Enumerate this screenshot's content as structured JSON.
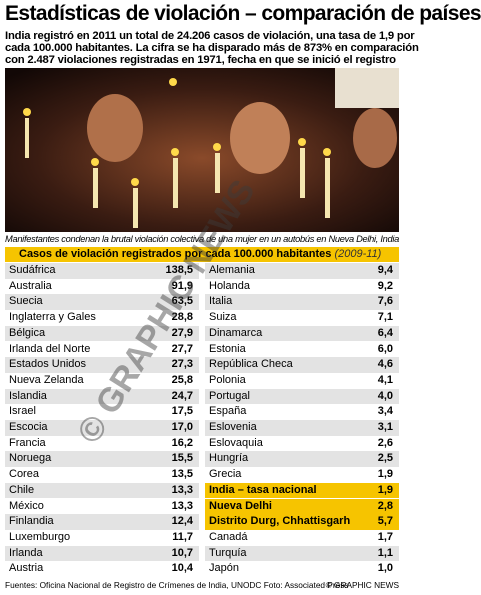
{
  "header": {
    "title": "Estadísticas de violación – comparación de países",
    "intro": [
      "India registró en 2011 un total de 24.206 casos de violación, una tasa de 1,9 por",
      "cada 100.000 habitantes. La cifra se ha disparado más de 873% en comparación",
      "con 2.487 violaciones registradas en 1971, fecha en que se inició el registro"
    ]
  },
  "photo": {
    "caption": "Manifestantes condenan la brutal violación colectiva de una mujer en un autobús en Nueva Delhi, India"
  },
  "table": {
    "title": "Casos de violación registrados por cada 100.000 habitantes",
    "period": "(2009-11)",
    "left": [
      [
        "Sudáfrica",
        "138,5"
      ],
      [
        "Australia",
        "91,9"
      ],
      [
        "Suecia",
        "63,5"
      ],
      [
        "Inglaterra y Gales",
        "28,8"
      ],
      [
        "Bélgica",
        "27,9"
      ],
      [
        "Irlanda del Norte",
        "27,7"
      ],
      [
        "Estados Unidos",
        "27,3"
      ],
      [
        "Nueva Zelanda",
        "25,8"
      ],
      [
        "Islandia",
        "24,7"
      ],
      [
        "Israel",
        "17,5"
      ],
      [
        "Escocia",
        "17,0"
      ],
      [
        "Francia",
        "16,2"
      ],
      [
        "Noruega",
        "15,5"
      ],
      [
        "Corea",
        "13,5"
      ],
      [
        "Chile",
        "13,3"
      ],
      [
        "México",
        "13,3"
      ],
      [
        "Finlandia",
        "12,4"
      ],
      [
        "Luxemburgo",
        "11,7"
      ],
      [
        "Irlanda",
        "10,7"
      ],
      [
        "Austria",
        "10,4"
      ]
    ],
    "right": [
      [
        "Alemania",
        "9,4"
      ],
      [
        "Holanda",
        "9,2"
      ],
      [
        "Italia",
        "7,6"
      ],
      [
        "Suiza",
        "7,1"
      ],
      [
        "Dinamarca",
        "6,4"
      ],
      [
        "Estonia",
        "6,0"
      ],
      [
        "República Checa",
        "4,6"
      ],
      [
        "Polonia",
        "4,1"
      ],
      [
        "Portugal",
        "4,0"
      ],
      [
        "España",
        "3,4"
      ],
      [
        "Eslovenia",
        "3,1"
      ],
      [
        "Eslovaquia",
        "2,6"
      ],
      [
        "Hungría",
        "2,5"
      ],
      [
        "Grecia",
        "1,9"
      ],
      [
        "India – tasa nacional",
        "1,9"
      ],
      [
        "Nueva Delhi",
        "2,8"
      ],
      [
        "Distrito Durg, Chhattisgarh",
        "5,7"
      ],
      [
        "Canadá",
        "1,7"
      ],
      [
        "Turquía",
        "1,1"
      ],
      [
        "Japón",
        "1,0"
      ]
    ]
  },
  "watermark": "© GRAPHIC NEWS",
  "footer": {
    "sources": "Fuentes: Oficina Nacional de Registro de Crímenes de India, UNODC  Foto: Associated Press",
    "brand": "© GRAPHIC NEWS"
  }
}
